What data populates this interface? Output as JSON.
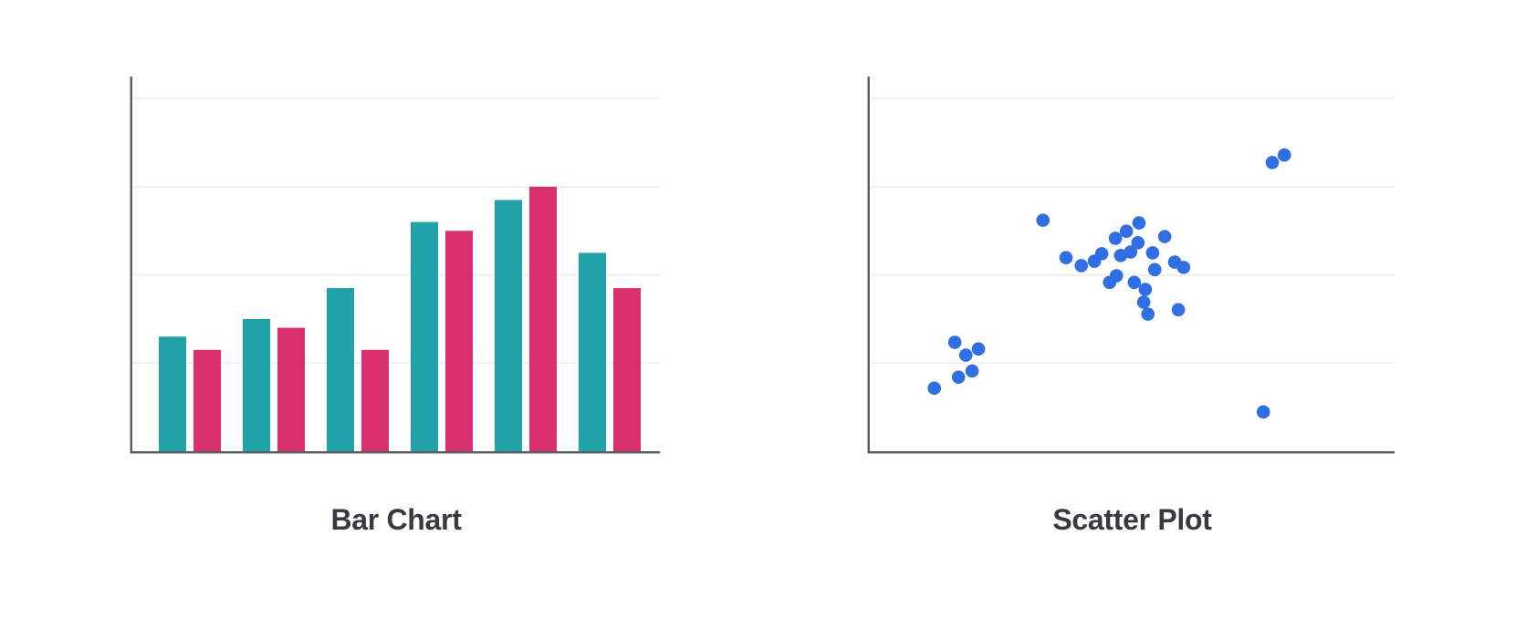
{
  "page": {
    "background": "#FFFFFF"
  },
  "chart_data": [
    {
      "id": "bar-chart",
      "type": "bar",
      "title": "Bar Chart",
      "title_color": "#373B41",
      "categories": [],
      "x_tick_labels": "none",
      "y_tick_labels": "none",
      "legend": "none",
      "n_groups": 6,
      "series": [
        {
          "name": "teal",
          "color": "#21A1A8",
          "values": [
            26,
            30,
            37,
            52,
            57,
            45
          ]
        },
        {
          "name": "pink",
          "color": "#D8306E",
          "values": [
            23,
            28,
            23,
            50,
            60,
            37
          ]
        }
      ],
      "ylim": [
        0,
        85
      ],
      "y_gridlines": [
        20,
        40,
        60,
        80
      ],
      "grid_color": "#EDEDEF",
      "axis_color": "#5C626B"
    },
    {
      "id": "scatter-plot",
      "type": "scatter",
      "title": "Scatter Plot",
      "title_color": "#373B41",
      "x_tick_labels": "none",
      "y_tick_labels": "none",
      "legend": "none",
      "marker_color": "#2F6FE3",
      "marker_radius_px": 7.3,
      "xlim": [
        0,
        100
      ],
      "ylim": [
        0,
        85
      ],
      "y_gridlines": [
        20,
        40,
        60,
        80
      ],
      "grid_color": "#EDEDEF",
      "axis_color": "#5C626B",
      "points": [
        {
          "x": 12.3,
          "y": 14.3
        },
        {
          "x": 16.2,
          "y": 24.7
        },
        {
          "x": 18.3,
          "y": 21.8
        },
        {
          "x": 20.7,
          "y": 23.2
        },
        {
          "x": 19.5,
          "y": 18.2
        },
        {
          "x": 16.9,
          "y": 16.8
        },
        {
          "x": 33.0,
          "y": 52.4
        },
        {
          "x": 37.4,
          "y": 43.9
        },
        {
          "x": 40.3,
          "y": 42.1
        },
        {
          "x": 42.8,
          "y": 43.1
        },
        {
          "x": 44.2,
          "y": 44.8
        },
        {
          "x": 46.8,
          "y": 48.3
        },
        {
          "x": 48.9,
          "y": 49.9
        },
        {
          "x": 51.3,
          "y": 51.8
        },
        {
          "x": 47.8,
          "y": 44.4
        },
        {
          "x": 49.7,
          "y": 45.2
        },
        {
          "x": 51.1,
          "y": 47.3
        },
        {
          "x": 47.0,
          "y": 39.8
        },
        {
          "x": 45.7,
          "y": 38.3
        },
        {
          "x": 50.4,
          "y": 38.3
        },
        {
          "x": 52.5,
          "y": 36.7
        },
        {
          "x": 52.2,
          "y": 33.8
        },
        {
          "x": 53.0,
          "y": 31.1
        },
        {
          "x": 53.9,
          "y": 45.0
        },
        {
          "x": 54.3,
          "y": 41.2
        },
        {
          "x": 56.2,
          "y": 48.7
        },
        {
          "x": 58.1,
          "y": 42.9
        },
        {
          "x": 59.8,
          "y": 41.7
        },
        {
          "x": 58.8,
          "y": 32.1
        },
        {
          "x": 76.7,
          "y": 65.5
        },
        {
          "x": 79.0,
          "y": 67.2
        },
        {
          "x": 75.0,
          "y": 8.9
        }
      ]
    }
  ]
}
